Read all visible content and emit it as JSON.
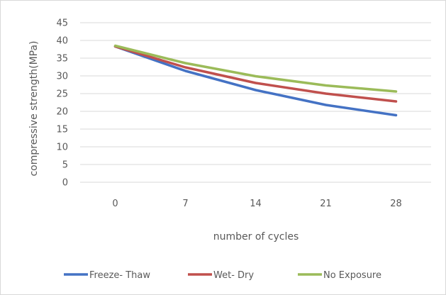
{
  "chart_data": {
    "type": "line",
    "title": "",
    "xlabel": "number of cycles",
    "ylabel": "compressive strength(MPa)",
    "categories": [
      "0",
      "7",
      "14",
      "21",
      "28"
    ],
    "ylim": [
      0,
      45
    ],
    "yticks": [
      0,
      5,
      10,
      15,
      20,
      25,
      30,
      35,
      40,
      45
    ],
    "grid": "horizontal",
    "legend_position": "bottom",
    "series": [
      {
        "name": "Freeze- Thaw",
        "color": "#4472c4",
        "values": [
          38.3,
          31.4,
          26.0,
          21.8,
          18.9
        ]
      },
      {
        "name": "Wet- Dry",
        "color": "#c0504d",
        "values": [
          38.3,
          32.4,
          28.0,
          25.0,
          22.8
        ]
      },
      {
        "name": "No Exposure",
        "color": "#9bbb59",
        "values": [
          38.5,
          33.6,
          29.9,
          27.3,
          25.6
        ]
      }
    ]
  }
}
